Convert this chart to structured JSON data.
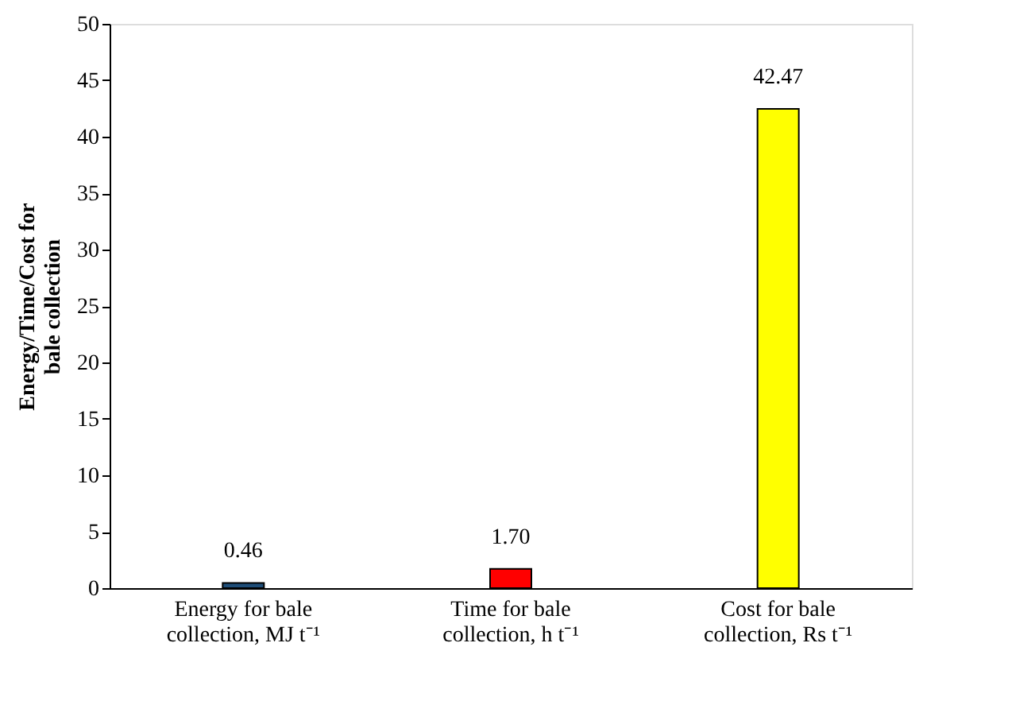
{
  "chart_data": {
    "type": "bar",
    "ylabel": "Energy/Time/Cost for bale collection",
    "categories": [
      "Energy for bale collection, MJ t⁻¹",
      "Time for bale collection, h t⁻¹",
      "Cost for bale collection, Rs t⁻¹"
    ],
    "values": [
      0.46,
      1.7,
      42.47
    ],
    "value_labels": [
      "0.46",
      "1.70",
      "42.47"
    ],
    "colors": [
      "#1f4e79",
      "#ff0000",
      "#ffff00"
    ],
    "ylim": [
      0,
      50
    ],
    "yticks": [
      0,
      5,
      10,
      15,
      20,
      25,
      30,
      35,
      40,
      45,
      50
    ],
    "grid": false,
    "legend": false
  }
}
